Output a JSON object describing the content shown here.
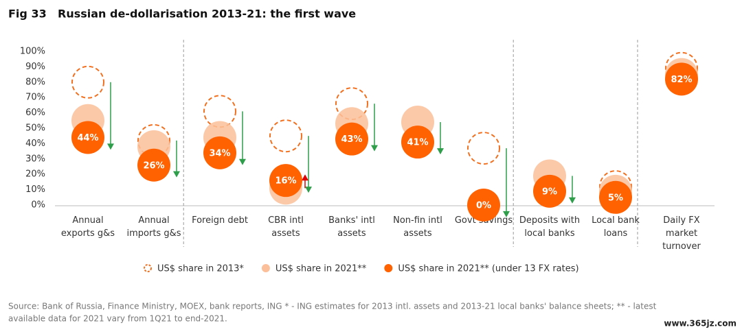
{
  "chart_data": {
    "type": "dot",
    "figure_label": "Fig 33",
    "title": "Russian de-dollarisation 2013-21: the first wave",
    "categories": [
      [
        "Annual",
        "exports g&s"
      ],
      [
        "Annual",
        "imports g&s"
      ],
      [
        "Foreign debt"
      ],
      [
        "CBR intl",
        "assets"
      ],
      [
        "Banks' intl",
        "assets"
      ],
      [
        "Non-fin intl",
        "assets"
      ],
      [
        "Govt savings"
      ],
      [
        "Deposits with",
        "local banks"
      ],
      [
        "Local bank",
        "loans"
      ],
      [
        "Daily FX",
        "market",
        "turnover"
      ]
    ],
    "series": [
      {
        "name": "US$ share in 2013*",
        "color": "#f07020",
        "style": "dashed",
        "values": [
          80,
          42,
          61,
          45,
          66,
          null,
          37,
          null,
          12,
          89
        ]
      },
      {
        "name": "US$ share in 2021**",
        "color": "#fbbf99",
        "style": "filled",
        "values": [
          55,
          38,
          44,
          11,
          53,
          54,
          null,
          19,
          9,
          85
        ]
      },
      {
        "name": "US$ share in 2021** (under 13 FX rates)",
        "color": "#ff6200",
        "style": "filled",
        "values": [
          44,
          26,
          34,
          16,
          43,
          41,
          0,
          9,
          5,
          82
        ],
        "value_labels": [
          "44%",
          "26%",
          "34%",
          "16%",
          "43%",
          "41%",
          "0%",
          "9%",
          "5%",
          "82%"
        ]
      }
    ],
    "ylim": [
      0,
      100
    ],
    "yticks": [
      {
        "value": 0,
        "label": "0%"
      },
      {
        "value": 10,
        "label": "10%"
      },
      {
        "value": 20,
        "label": "20%"
      },
      {
        "value": 30,
        "label": "30%"
      },
      {
        "value": 40,
        "label": "40%"
      },
      {
        "value": 50,
        "label": "50%"
      },
      {
        "value": 60,
        "label": "60%"
      },
      {
        "value": 70,
        "label": "70%"
      },
      {
        "value": 80,
        "label": "80%"
      },
      {
        "value": 90,
        "label": "90%"
      },
      {
        "value": 100,
        "label": "100%"
      }
    ],
    "source": [
      "Source: Bank of Russia, Finance Ministry, MOEX, bank reports, ING * - ING estimates for 2013 intl. assets and 2013-21 local banks' balance sheets; ** - latest",
      "available data for 2021 vary from 1Q21 to end-2021."
    ],
    "watermark": "www.365jz.com"
  }
}
